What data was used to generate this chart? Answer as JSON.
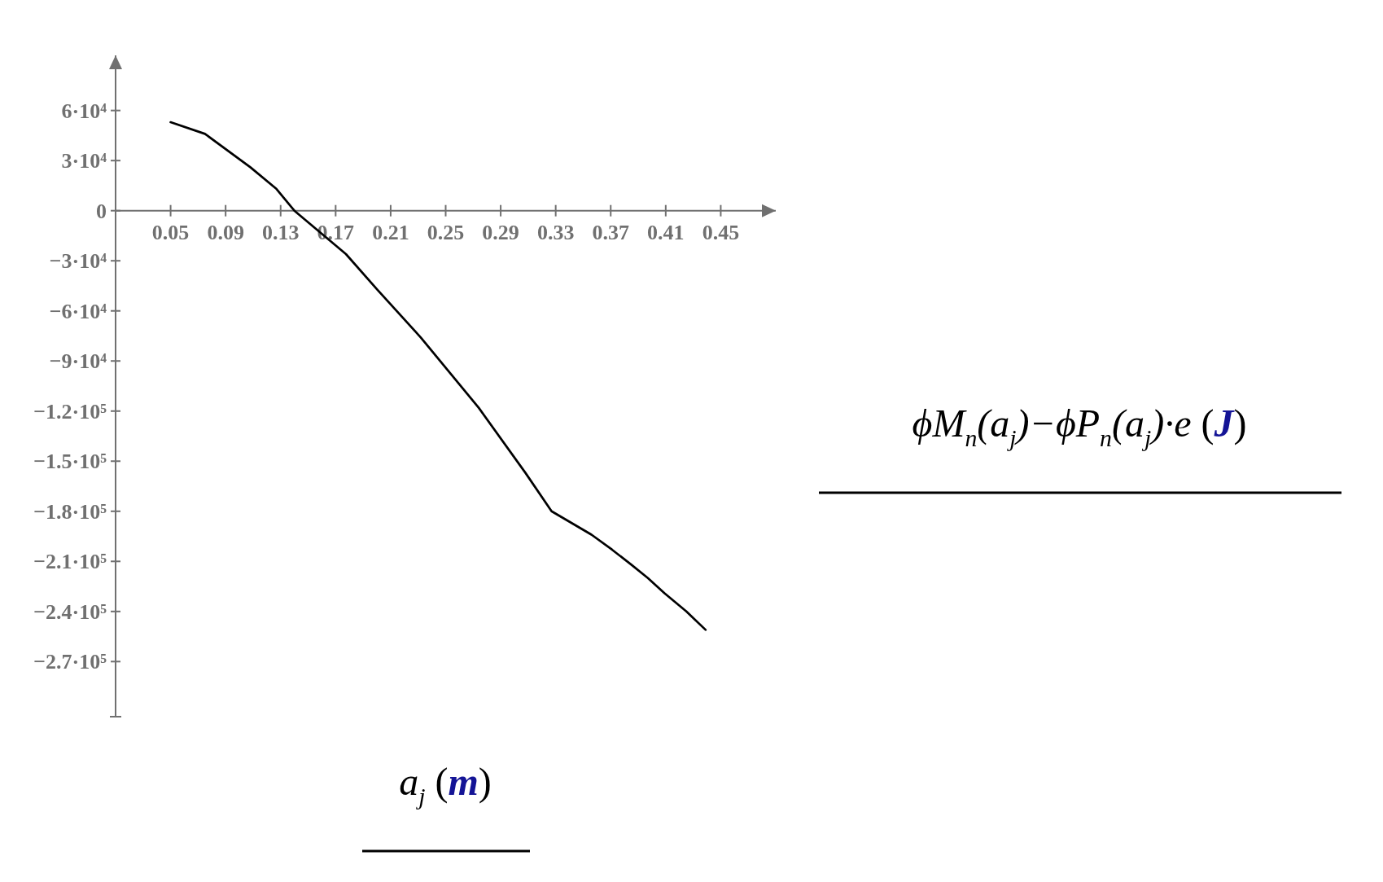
{
  "chart_data": {
    "type": "line",
    "xlabel": "a$_{j}$ (m)",
    "ylabel": "ϕM$_{n}$(a$_{j}$)−ϕP$_{n}$(a$_{j}$)·e (J)",
    "x": [
      0.05,
      0.075,
      0.108,
      0.127,
      0.14,
      0.1775,
      0.2,
      0.232,
      0.274,
      0.308,
      0.327,
      0.356,
      0.371,
      0.385,
      0.397,
      0.409,
      0.425,
      0.439
    ],
    "series": [
      {
        "color": "#000000",
        "values": [
          53000,
          46000,
          26000,
          13000,
          0,
          -26000,
          -47000,
          -76000,
          -118000,
          -157000,
          -180000,
          -194000,
          -203000,
          -212000,
          -220000,
          -229000,
          -240000,
          -251000
        ]
      }
    ],
    "xlim": [
      0.01,
      0.49
    ],
    "ylim": [
      -303000,
      93000
    ],
    "xticks": [
      0.05,
      0.09,
      0.13,
      0.17,
      0.21,
      0.25,
      0.29,
      0.33,
      0.37,
      0.41,
      0.45
    ],
    "yticks": [
      {
        "value": 60000,
        "label": "6·10⁴"
      },
      {
        "value": 30000,
        "label": "3·10⁴"
      },
      0,
      {
        "value": -30000,
        "label": "−3·10⁴"
      },
      {
        "value": -60000,
        "label": "−6·10⁴"
      },
      {
        "value": -90000,
        "label": "−9·10⁴"
      },
      {
        "value": -120000,
        "label": "−1.2·10⁵"
      },
      {
        "value": -150000,
        "label": "−1.5·10⁵"
      },
      {
        "value": -180000,
        "label": "−1.8·10⁵"
      },
      {
        "value": -210000,
        "label": "−2.1·10⁵"
      },
      {
        "value": -240000,
        "label": "−2.4·10⁵"
      },
      {
        "value": -270000,
        "label": "−2.7·10⁵"
      }
    ],
    "line_style": "solid"
  }
}
